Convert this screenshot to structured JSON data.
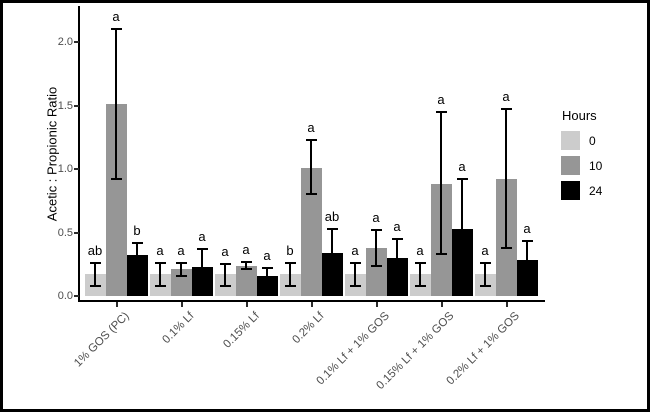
{
  "chart_data": {
    "type": "bar",
    "title": "",
    "xlabel": "",
    "ylabel": "Acetic : Propionic Ratio",
    "ylim": [
      0,
      2.2
    ],
    "yticks": [
      0.0,
      0.5,
      1.0,
      1.5,
      2.0
    ],
    "ytick_labels": [
      "0.0",
      "0.5",
      "1.0",
      "1.5",
      "2.0"
    ],
    "grid": false,
    "categories": [
      "1% GOS (PC)",
      "0.1% Lf",
      "0.15% Lf",
      "0.2% Lf",
      "0.1% Lf + 1% GOS",
      "0.15% Lf + 1% GOS",
      "0.2% Lf + 1% GOS"
    ],
    "series": [
      {
        "name": "0",
        "color": "#cccccc",
        "values": [
          0.17,
          0.17,
          0.17,
          0.17,
          0.17,
          0.17,
          0.17
        ],
        "error_low": [
          0.08,
          0.08,
          0.08,
          0.08,
          0.08,
          0.08,
          0.08
        ],
        "error_high": [
          0.26,
          0.26,
          0.25,
          0.26,
          0.26,
          0.26,
          0.26
        ],
        "letters": [
          "ab",
          "a",
          "a",
          "b",
          "a",
          "a",
          "a"
        ]
      },
      {
        "name": "10",
        "color": "#969696",
        "values": [
          1.51,
          0.21,
          0.24,
          1.01,
          0.38,
          0.88,
          0.92
        ],
        "error_low": [
          0.92,
          0.16,
          0.21,
          0.8,
          0.24,
          0.33,
          0.38
        ],
        "error_high": [
          2.1,
          0.26,
          0.27,
          1.23,
          0.52,
          1.45,
          1.47
        ],
        "letters": [
          "a",
          "a",
          "a",
          "a",
          "a",
          "a",
          "a"
        ]
      },
      {
        "name": "24",
        "color": "#000000",
        "values": [
          0.32,
          0.23,
          0.16,
          0.34,
          0.3,
          0.53,
          0.28
        ],
        "error_low": [
          0.22,
          0.1,
          0.1,
          0.15,
          0.14,
          0.14,
          0.13
        ],
        "error_high": [
          0.42,
          0.37,
          0.22,
          0.53,
          0.45,
          0.92,
          0.43
        ],
        "letters": [
          "b",
          "a",
          "a",
          "ab",
          "a",
          "a",
          "a"
        ]
      }
    ],
    "legend": {
      "title": "Hours",
      "position": "right",
      "entries": [
        {
          "label": "0",
          "color": "#cccccc"
        },
        {
          "label": "10",
          "color": "#969696"
        },
        {
          "label": "24",
          "color": "#000000"
        }
      ]
    }
  }
}
